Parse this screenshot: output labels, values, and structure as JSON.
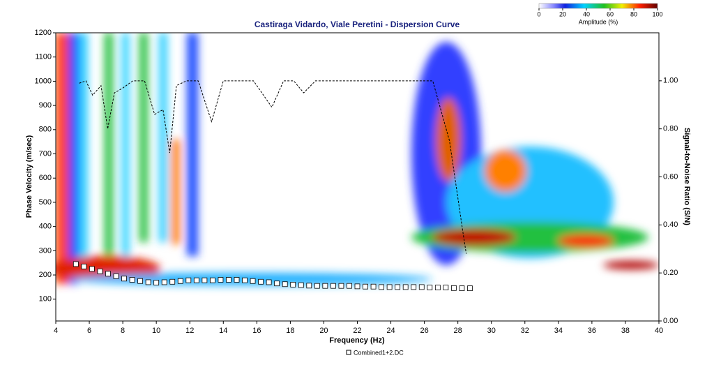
{
  "chart_data": {
    "type": "scatter",
    "title": "Castiraga Vidardo, Viale Peretini - Dispersion Curve",
    "x_label": "Frequency (Hz)",
    "y_label": "Phase Velocity (m/sec)",
    "y2_label": "Signal-to-Noise Ratio (S/N)",
    "xlim": [
      4,
      40
    ],
    "xticks": [
      4,
      6,
      8,
      10,
      12,
      14,
      16,
      18,
      20,
      22,
      24,
      26,
      28,
      30,
      32,
      34,
      36,
      38,
      40
    ],
    "ylim": [
      10,
      1200
    ],
    "yticks": [
      100,
      200,
      300,
      400,
      500,
      600,
      700,
      800,
      900,
      1000,
      1100,
      1200
    ],
    "y2lim": [
      0,
      1.2
    ],
    "y2ticks": [
      {
        "value": 0,
        "label": "0.00"
      },
      {
        "value": 0.2,
        "label": "0.20"
      },
      {
        "value": 0.4,
        "label": "0.40"
      },
      {
        "value": 0.6,
        "label": "0.60"
      },
      {
        "value": 0.8,
        "label": "0.80"
      },
      {
        "value": 1,
        "label": "1.00"
      }
    ],
    "series": [
      {
        "name": "Combined1+2.DC",
        "color": "#ffffff",
        "x": [
          5.2,
          5.68,
          6.16,
          6.64,
          7.12,
          7.6,
          8.08,
          8.56,
          9.04,
          9.52,
          10.0,
          10.48,
          10.96,
          11.44,
          11.92,
          12.4,
          12.88,
          13.36,
          13.84,
          14.32,
          14.8,
          15.28,
          15.76,
          16.24,
          16.72,
          17.2,
          17.68,
          18.16,
          18.64,
          19.12,
          19.6,
          20.08,
          20.56,
          21.04,
          21.52,
          22.0,
          22.48,
          22.96,
          23.44,
          23.92,
          24.4,
          24.88,
          25.36,
          25.84,
          26.32,
          26.8,
          27.28,
          27.76,
          28.24,
          28.72
        ],
        "values": [
          245,
          235,
          225,
          215,
          205,
          195,
          185,
          180,
          175,
          170,
          168,
          170,
          172,
          175,
          178,
          178,
          178,
          178,
          180,
          180,
          180,
          178,
          175,
          172,
          170,
          165,
          162,
          160,
          158,
          156,
          155,
          155,
          155,
          155,
          155,
          153,
          152,
          152,
          150,
          150,
          150,
          150,
          150,
          150,
          148,
          148,
          148,
          146,
          145,
          145
        ]
      },
      {
        "type": "line",
        "axis": "y2",
        "color": "#000000",
        "x": [
          5.4,
          5.8,
          6.2,
          6.7,
          7.1,
          7.5,
          8.0,
          8.6,
          9.3,
          9.9,
          10.4,
          10.8,
          11.2,
          11.8,
          12.5,
          13.3,
          14.0,
          15.8,
          16.9,
          17.6,
          18.2,
          18.8,
          19.5,
          26.5,
          27.5,
          28.3,
          28.5
        ],
        "values": [
          0.99,
          1.0,
          0.94,
          0.98,
          0.8,
          0.95,
          0.97,
          1.0,
          1.0,
          0.86,
          0.88,
          0.7,
          0.98,
          1.0,
          1.0,
          0.83,
          1.0,
          1.0,
          0.89,
          1.0,
          1.0,
          0.95,
          1.0,
          1.0,
          0.75,
          0.37,
          0.28
        ]
      }
    ],
    "colorbar": {
      "label": "Amplitude (%)",
      "lim": [
        0,
        100
      ],
      "ticks": [
        0,
        20,
        40,
        60,
        80,
        100
      ]
    }
  }
}
